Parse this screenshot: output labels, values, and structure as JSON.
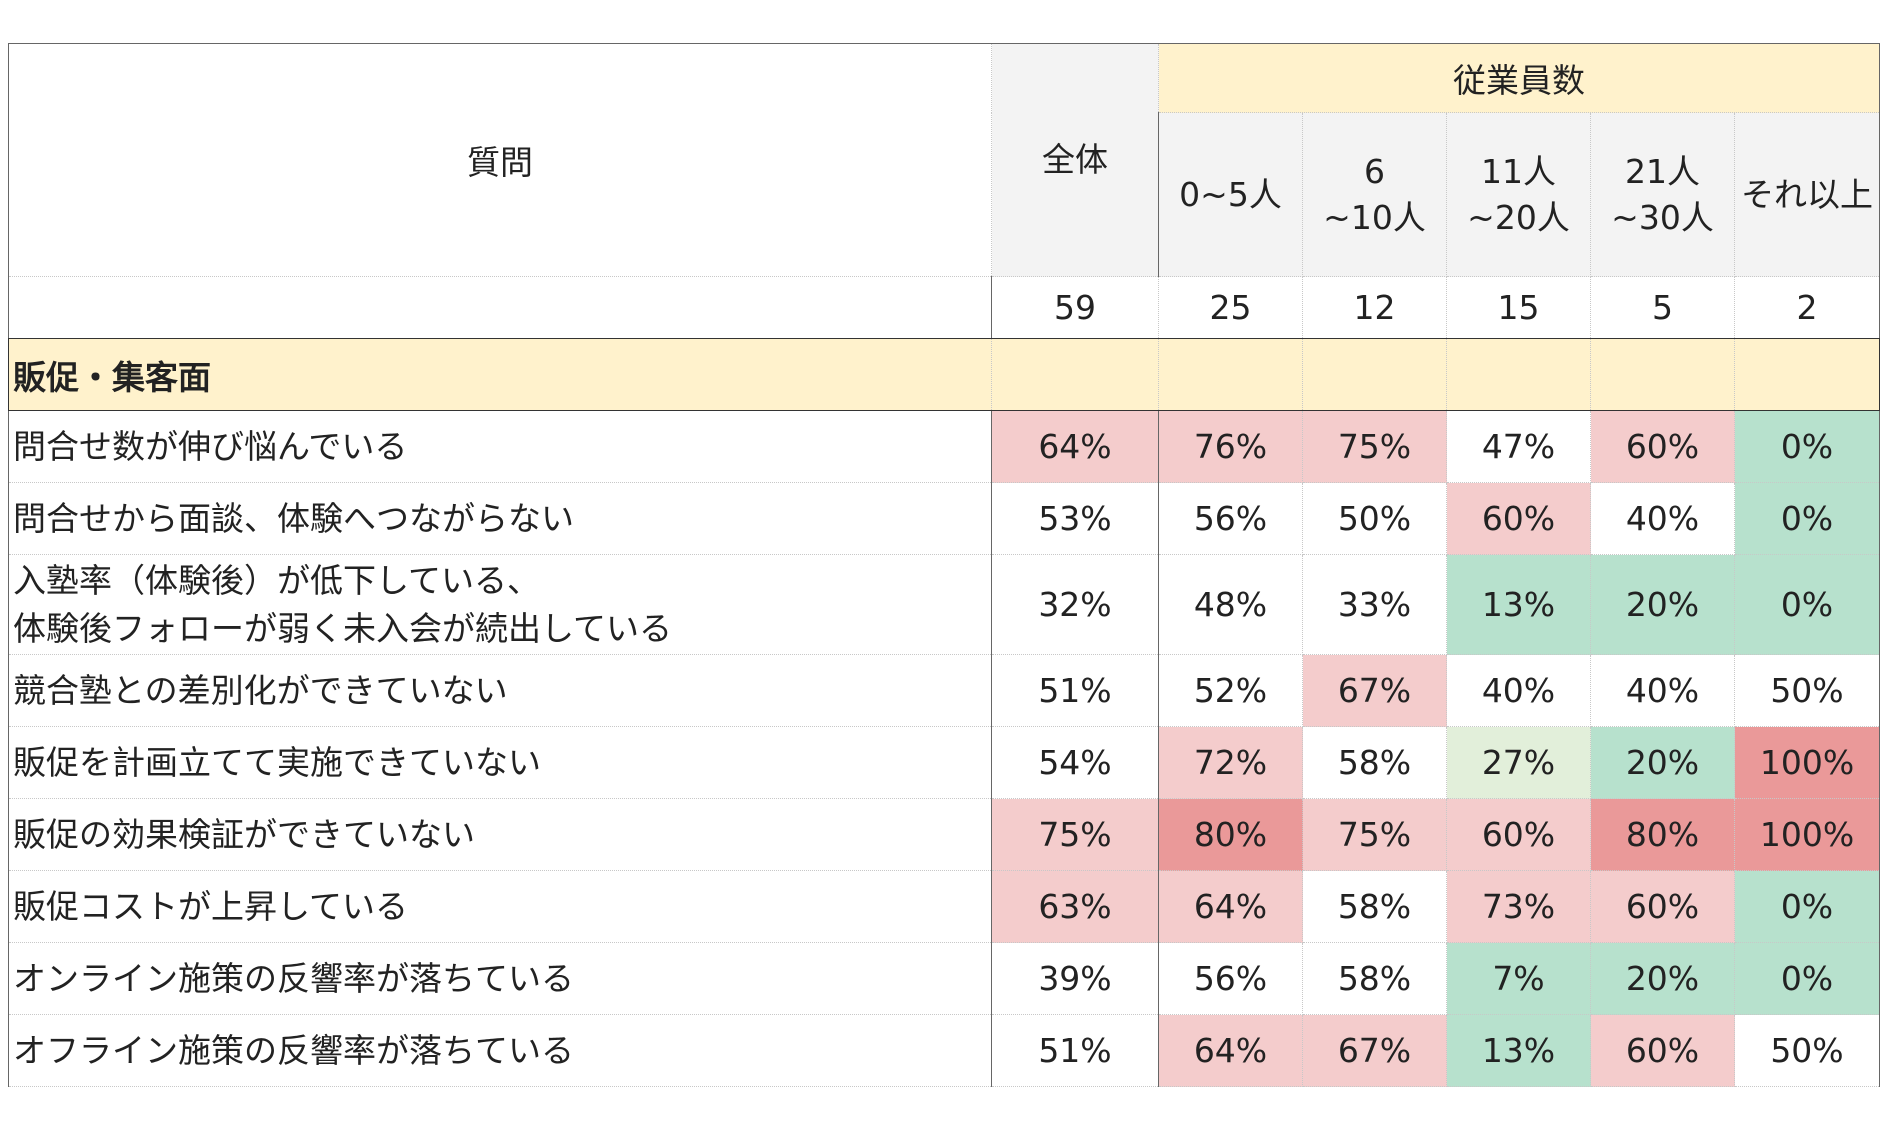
{
  "chart_data": {
    "type": "table",
    "header": {
      "question": "質問",
      "total": "全体",
      "group": "従業員数",
      "bands": [
        [
          "0~5人"
        ],
        [
          "6",
          "~10人"
        ],
        [
          "11人",
          "~20人"
        ],
        [
          "21人",
          "~30人"
        ],
        [
          "それ以上"
        ]
      ]
    },
    "counts": [
      "59",
      "25",
      "12",
      "15",
      "5",
      "2"
    ],
    "section": "販促・集客面",
    "rows": [
      {
        "label": [
          "問合せ数が伸び悩んでいる"
        ],
        "values": [
          "64%",
          "76%",
          "75%",
          "47%",
          "60%",
          "0%"
        ]
      },
      {
        "label": [
          "問合せから面談、体験へつながらない"
        ],
        "values": [
          "53%",
          "56%",
          "50%",
          "60%",
          "40%",
          "0%"
        ]
      },
      {
        "label": [
          "入塾率（体験後）が低下している、",
          "体験後フォローが弱く未入会が続出している"
        ],
        "values": [
          "32%",
          "48%",
          "33%",
          "13%",
          "20%",
          "0%"
        ]
      },
      {
        "label": [
          "競合塾との差別化ができていない"
        ],
        "values": [
          "51%",
          "52%",
          "67%",
          "40%",
          "40%",
          "50%"
        ]
      },
      {
        "label": [
          "販促を計画立てて実施できていない"
        ],
        "values": [
          "54%",
          "72%",
          "58%",
          "27%",
          "20%",
          "100%"
        ]
      },
      {
        "label": [
          "販促の効果検証ができていない"
        ],
        "values": [
          "75%",
          "80%",
          "75%",
          "60%",
          "80%",
          "100%"
        ]
      },
      {
        "label": [
          "販促コストが上昇している"
        ],
        "values": [
          "63%",
          "64%",
          "58%",
          "73%",
          "60%",
          "0%"
        ]
      },
      {
        "label": [
          "オンライン施策の反響率が落ちている"
        ],
        "values": [
          "39%",
          "56%",
          "58%",
          "7%",
          "20%",
          "0%"
        ]
      },
      {
        "label": [
          "オフライン施策の反響率が落ちている"
        ],
        "values": [
          "51%",
          "64%",
          "67%",
          "13%",
          "60%",
          "50%"
        ]
      }
    ],
    "cell_colors": [
      [
        "#f4cccc",
        "#f4cccc",
        "#f4cccc",
        "#ffffff",
        "#f4cccc",
        "#b7e1cd"
      ],
      [
        "#ffffff",
        "#ffffff",
        "#ffffff",
        "#f4cccc",
        "#ffffff",
        "#b7e1cd"
      ],
      [
        "#ffffff",
        "#ffffff",
        "#ffffff",
        "#b7e1cd",
        "#b7e1cd",
        "#b7e1cd"
      ],
      [
        "#ffffff",
        "#ffffff",
        "#f4cccc",
        "#ffffff",
        "#ffffff",
        "#ffffff"
      ],
      [
        "#ffffff",
        "#f4cccc",
        "#ffffff",
        "#e2efda",
        "#b7e1cd",
        "#ea9999"
      ],
      [
        "#f4cccc",
        "#ea9999",
        "#f4cccc",
        "#f4cccc",
        "#ea9999",
        "#ea9999"
      ],
      [
        "#f4cccc",
        "#f4cccc",
        "#ffffff",
        "#f4cccc",
        "#f4cccc",
        "#b7e1cd"
      ],
      [
        "#ffffff",
        "#ffffff",
        "#ffffff",
        "#b7e1cd",
        "#b7e1cd",
        "#b7e1cd"
      ],
      [
        "#ffffff",
        "#f4cccc",
        "#f4cccc",
        "#b7e1cd",
        "#f4cccc",
        "#ffffff"
      ]
    ]
  }
}
